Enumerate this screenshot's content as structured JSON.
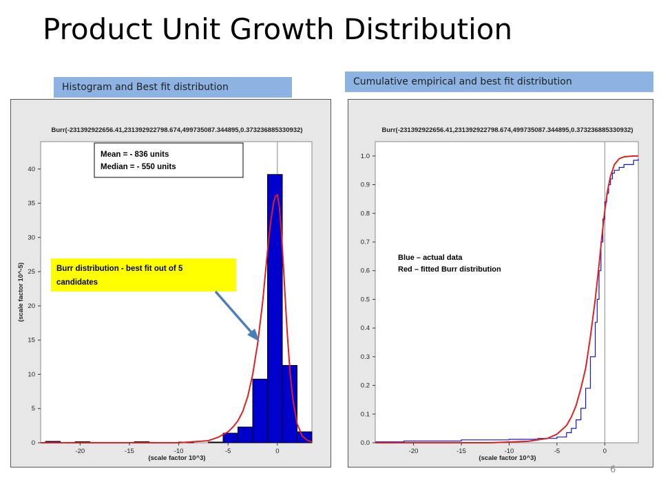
{
  "slide": {
    "title": "Product Unit Growth Distribution",
    "page_number": "6",
    "left_header": "Histogram and Best fit distribution",
    "right_header": "Cumulative empirical and best fit distribution"
  },
  "colors": {
    "header_fill": "#8db3e2",
    "bar_fill": "#0000cc",
    "fit_curve": "#e02020",
    "empirical_curve": "#1515c8",
    "callout_yellow": "#ffff00",
    "arrow": "#4a7ebb",
    "plot_bg": "#ffffff",
    "panel_bg": "#e7e7e7"
  },
  "annotations": {
    "stats_line1": "Mean = - 836 units",
    "stats_line2": "Median = - 550 units",
    "callout": "Burr distribution -  best fit out of 5 candidates",
    "legend_line1": "Blue – actual data",
    "legend_line2": "Red – fitted Burr distribution"
  },
  "chart_data": [
    {
      "type": "bar",
      "title": "Burr(-231392922656.41,231392922798.674,499735087.344895,0.373236885330932)",
      "xlabel": "(scale factor 10^3)",
      "ylabel": "(scale factor 10^-5)",
      "xlim": [
        -24,
        3.5
      ],
      "ylim": [
        0,
        44
      ],
      "xticks": [
        -20,
        -15,
        -10,
        -5,
        0
      ],
      "yticks": [
        0,
        5,
        10,
        15,
        20,
        25,
        30,
        35,
        40
      ],
      "grid": false,
      "bin_width": 1.5,
      "bins": [
        {
          "x0": -23.5,
          "value": 0.2
        },
        {
          "x0": -20.5,
          "value": 0.15
        },
        {
          "x0": -14.5,
          "value": 0.15
        },
        {
          "x0": -10.0,
          "value": 0.1
        },
        {
          "x0": -7.0,
          "value": 0.1
        },
        {
          "x0": -5.5,
          "value": 1.4
        },
        {
          "x0": -4.0,
          "value": 2.3
        },
        {
          "x0": -2.5,
          "value": 9.3
        },
        {
          "x0": -1.0,
          "value": 39.2
        },
        {
          "x0": 0.5,
          "value": 11.3
        },
        {
          "x0": 2.0,
          "value": 1.6
        }
      ],
      "fit_curve": {
        "x": [
          -24,
          -10,
          -7,
          -6,
          -5,
          -4.5,
          -4,
          -3.5,
          -3,
          -2.5,
          -2,
          -1.5,
          -1,
          -0.7,
          -0.4,
          -0.2,
          0,
          0.2,
          0.4,
          0.6,
          0.8,
          1,
          1.3,
          1.6,
          2,
          2.5,
          3,
          3.5
        ],
        "y": [
          0,
          0,
          0.3,
          0.8,
          1.6,
          2.3,
          3.2,
          4.6,
          6.8,
          10,
          14.5,
          20.5,
          28,
          32,
          35,
          36,
          36.2,
          34.5,
          31,
          26,
          21,
          16,
          10,
          6,
          2.8,
          1,
          0.4,
          0.1
        ]
      }
    },
    {
      "type": "line",
      "title": "Burr(-231392922656.41,231392922798.674,499735087.344895,0.373236885330932)",
      "xlabel": "(scale factor 10^3)",
      "ylabel": "",
      "xlim": [
        -24,
        3.5
      ],
      "ylim": [
        0,
        1.05
      ],
      "xticks": [
        -20,
        -15,
        -10,
        -5,
        0
      ],
      "yticks": [
        0.0,
        0.1,
        0.2,
        0.3,
        0.4,
        0.5,
        0.6,
        0.7,
        0.8,
        0.9,
        1.0
      ],
      "grid": false,
      "series": [
        {
          "id": "empirical",
          "step": true,
          "x": [
            -24,
            -21,
            -15,
            -10,
            -7,
            -5,
            -4,
            -3.5,
            -3,
            -2.5,
            -2,
            -1.5,
            -1,
            -0.8,
            -0.6,
            -0.4,
            -0.2,
            0,
            0.2,
            0.4,
            0.6,
            0.8,
            1,
            1.5,
            2,
            3,
            3.5
          ],
          "y": [
            0.003,
            0.006,
            0.01,
            0.012,
            0.015,
            0.02,
            0.035,
            0.05,
            0.08,
            0.12,
            0.19,
            0.3,
            0.42,
            0.5,
            0.6,
            0.7,
            0.78,
            0.84,
            0.87,
            0.9,
            0.92,
            0.94,
            0.95,
            0.96,
            0.97,
            0.985,
            0.99
          ]
        },
        {
          "id": "fitted",
          "step": false,
          "x": [
            -24,
            -12,
            -8,
            -6,
            -5,
            -4,
            -3.5,
            -3,
            -2.5,
            -2,
            -1.5,
            -1,
            -0.6,
            -0.3,
            0,
            0.3,
            0.6,
            1,
            1.5,
            2,
            3,
            3.5
          ],
          "y": [
            0,
            0,
            0.005,
            0.015,
            0.03,
            0.06,
            0.09,
            0.13,
            0.19,
            0.26,
            0.37,
            0.5,
            0.62,
            0.72,
            0.81,
            0.88,
            0.93,
            0.97,
            0.99,
            0.997,
            1,
            1
          ]
        }
      ]
    }
  ]
}
